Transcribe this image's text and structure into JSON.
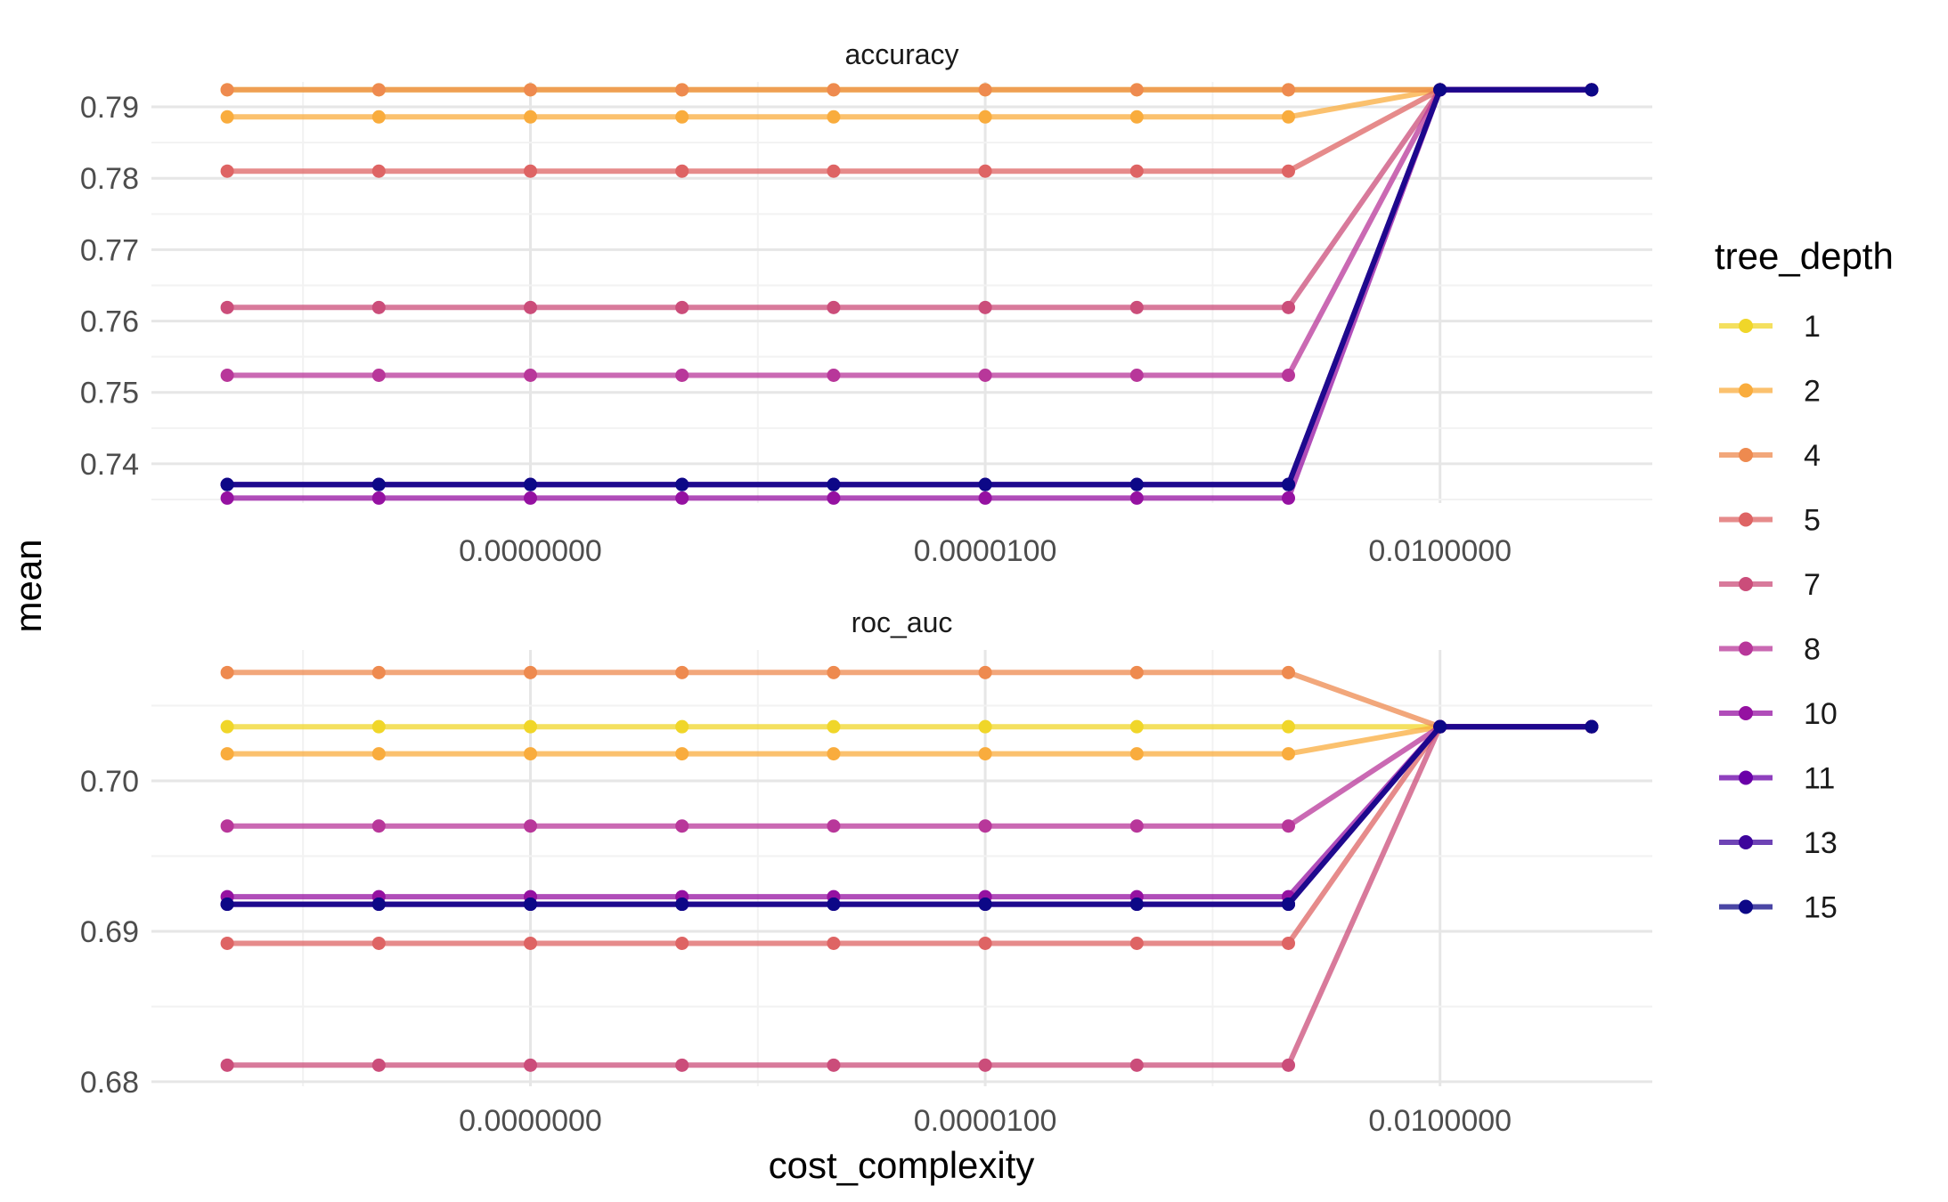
{
  "chart_data": {
    "type": "line",
    "xlabel": "cost_complexity",
    "ylabel": "mean",
    "x_scale": "log10",
    "x": [
      1e-10,
      1e-09,
      1e-08,
      1e-07,
      1e-06,
      1e-05,
      0.0001,
      0.001,
      0.01,
      0.1
    ],
    "x_tick_values": [
      1e-08,
      1e-05,
      0.01
    ],
    "x_tick_labels": [
      "0.0000000",
      "0.0000100",
      "0.0100000"
    ],
    "legend_title": "tree_depth",
    "legend_position": "right",
    "grid": true,
    "panels": [
      {
        "name": "accuracy",
        "ylim": [
          0.7345,
          0.7935
        ],
        "y_ticks": [
          0.74,
          0.75,
          0.76,
          0.77,
          0.78,
          0.79
        ],
        "y_tick_labels": [
          "0.74",
          "0.75",
          "0.76",
          "0.77",
          "0.78",
          "0.79"
        ],
        "series": [
          {
            "name": "1",
            "values": [
              0.7924,
              0.7924,
              0.7924,
              0.7924,
              0.7924,
              0.7924,
              0.7924,
              0.7924,
              0.7924,
              0.7924
            ]
          },
          {
            "name": "2",
            "values": [
              0.7886,
              0.7886,
              0.7886,
              0.7886,
              0.7886,
              0.7886,
              0.7886,
              0.7886,
              0.7924,
              0.7924
            ]
          },
          {
            "name": "4",
            "values": [
              0.7924,
              0.7924,
              0.7924,
              0.7924,
              0.7924,
              0.7924,
              0.7924,
              0.7924,
              0.7924,
              0.7924
            ]
          },
          {
            "name": "5",
            "values": [
              0.781,
              0.781,
              0.781,
              0.781,
              0.781,
              0.781,
              0.781,
              0.781,
              0.7924,
              0.7924
            ]
          },
          {
            "name": "7",
            "values": [
              0.7619,
              0.7619,
              0.7619,
              0.7619,
              0.7619,
              0.7619,
              0.7619,
              0.7619,
              0.7924,
              0.7924
            ]
          },
          {
            "name": "8",
            "values": [
              0.7524,
              0.7524,
              0.7524,
              0.7524,
              0.7524,
              0.7524,
              0.7524,
              0.7524,
              0.7924,
              0.7924
            ]
          },
          {
            "name": "10",
            "values": [
              0.7352,
              0.7352,
              0.7352,
              0.7352,
              0.7352,
              0.7352,
              0.7352,
              0.7352,
              0.7924,
              0.7924
            ]
          },
          {
            "name": "11",
            "values": [
              0.7371,
              0.7371,
              0.7371,
              0.7371,
              0.7371,
              0.7371,
              0.7371,
              0.7371,
              0.7924,
              0.7924
            ]
          },
          {
            "name": "13",
            "values": [
              0.7371,
              0.7371,
              0.7371,
              0.7371,
              0.7371,
              0.7371,
              0.7371,
              0.7371,
              0.7924,
              0.7924
            ]
          },
          {
            "name": "15",
            "values": [
              0.7371,
              0.7371,
              0.7371,
              0.7371,
              0.7371,
              0.7371,
              0.7371,
              0.7371,
              0.7924,
              0.7924
            ]
          }
        ]
      },
      {
        "name": "roc_auc",
        "ylim": [
          0.6797,
          0.7087
        ],
        "y_ticks": [
          0.68,
          0.69,
          0.7
        ],
        "y_tick_labels": [
          "0.68",
          "0.69",
          "0.70"
        ],
        "series": [
          {
            "name": "1",
            "values": [
              0.7036,
              0.7036,
              0.7036,
              0.7036,
              0.7036,
              0.7036,
              0.7036,
              0.7036,
              0.7036,
              0.7036
            ]
          },
          {
            "name": "2",
            "values": [
              0.7018,
              0.7018,
              0.7018,
              0.7018,
              0.7018,
              0.7018,
              0.7018,
              0.7018,
              0.7036,
              0.7036
            ]
          },
          {
            "name": "4",
            "values": [
              0.7072,
              0.7072,
              0.7072,
              0.7072,
              0.7072,
              0.7072,
              0.7072,
              0.7072,
              0.7036,
              0.7036
            ]
          },
          {
            "name": "5",
            "values": [
              0.6892,
              0.6892,
              0.6892,
              0.6892,
              0.6892,
              0.6892,
              0.6892,
              0.6892,
              0.7036,
              0.7036
            ]
          },
          {
            "name": "7",
            "values": [
              0.6811,
              0.6811,
              0.6811,
              0.6811,
              0.6811,
              0.6811,
              0.6811,
              0.6811,
              0.7036,
              0.7036
            ]
          },
          {
            "name": "8",
            "values": [
              0.697,
              0.697,
              0.697,
              0.697,
              0.697,
              0.697,
              0.697,
              0.697,
              0.7036,
              0.7036
            ]
          },
          {
            "name": "10",
            "values": [
              0.6923,
              0.6923,
              0.6923,
              0.6923,
              0.6923,
              0.6923,
              0.6923,
              0.6923,
              0.7036,
              0.7036
            ]
          },
          {
            "name": "11",
            "values": [
              0.6918,
              0.6918,
              0.6918,
              0.6918,
              0.6918,
              0.6918,
              0.6918,
              0.6918,
              0.7036,
              0.7036
            ]
          },
          {
            "name": "13",
            "values": [
              0.6918,
              0.6918,
              0.6918,
              0.6918,
              0.6918,
              0.6918,
              0.6918,
              0.6918,
              0.7036,
              0.7036
            ]
          },
          {
            "name": "15",
            "values": [
              0.6918,
              0.6918,
              0.6918,
              0.6918,
              0.6918,
              0.6918,
              0.6918,
              0.6918,
              0.7036,
              0.7036
            ]
          }
        ]
      }
    ],
    "legend": [
      {
        "label": "1",
        "color": "#F0D629"
      },
      {
        "label": "2",
        "color": "#F9AC3D"
      },
      {
        "label": "4",
        "color": "#EE8A4F"
      },
      {
        "label": "5",
        "color": "#DE6464"
      },
      {
        "label": "7",
        "color": "#CB4D7A"
      },
      {
        "label": "8",
        "color": "#B8379A"
      },
      {
        "label": "10",
        "color": "#9511A1"
      },
      {
        "label": "11",
        "color": "#6A00A8"
      },
      {
        "label": "13",
        "color": "#3E049C"
      },
      {
        "label": "15",
        "color": "#0D0887"
      }
    ]
  }
}
